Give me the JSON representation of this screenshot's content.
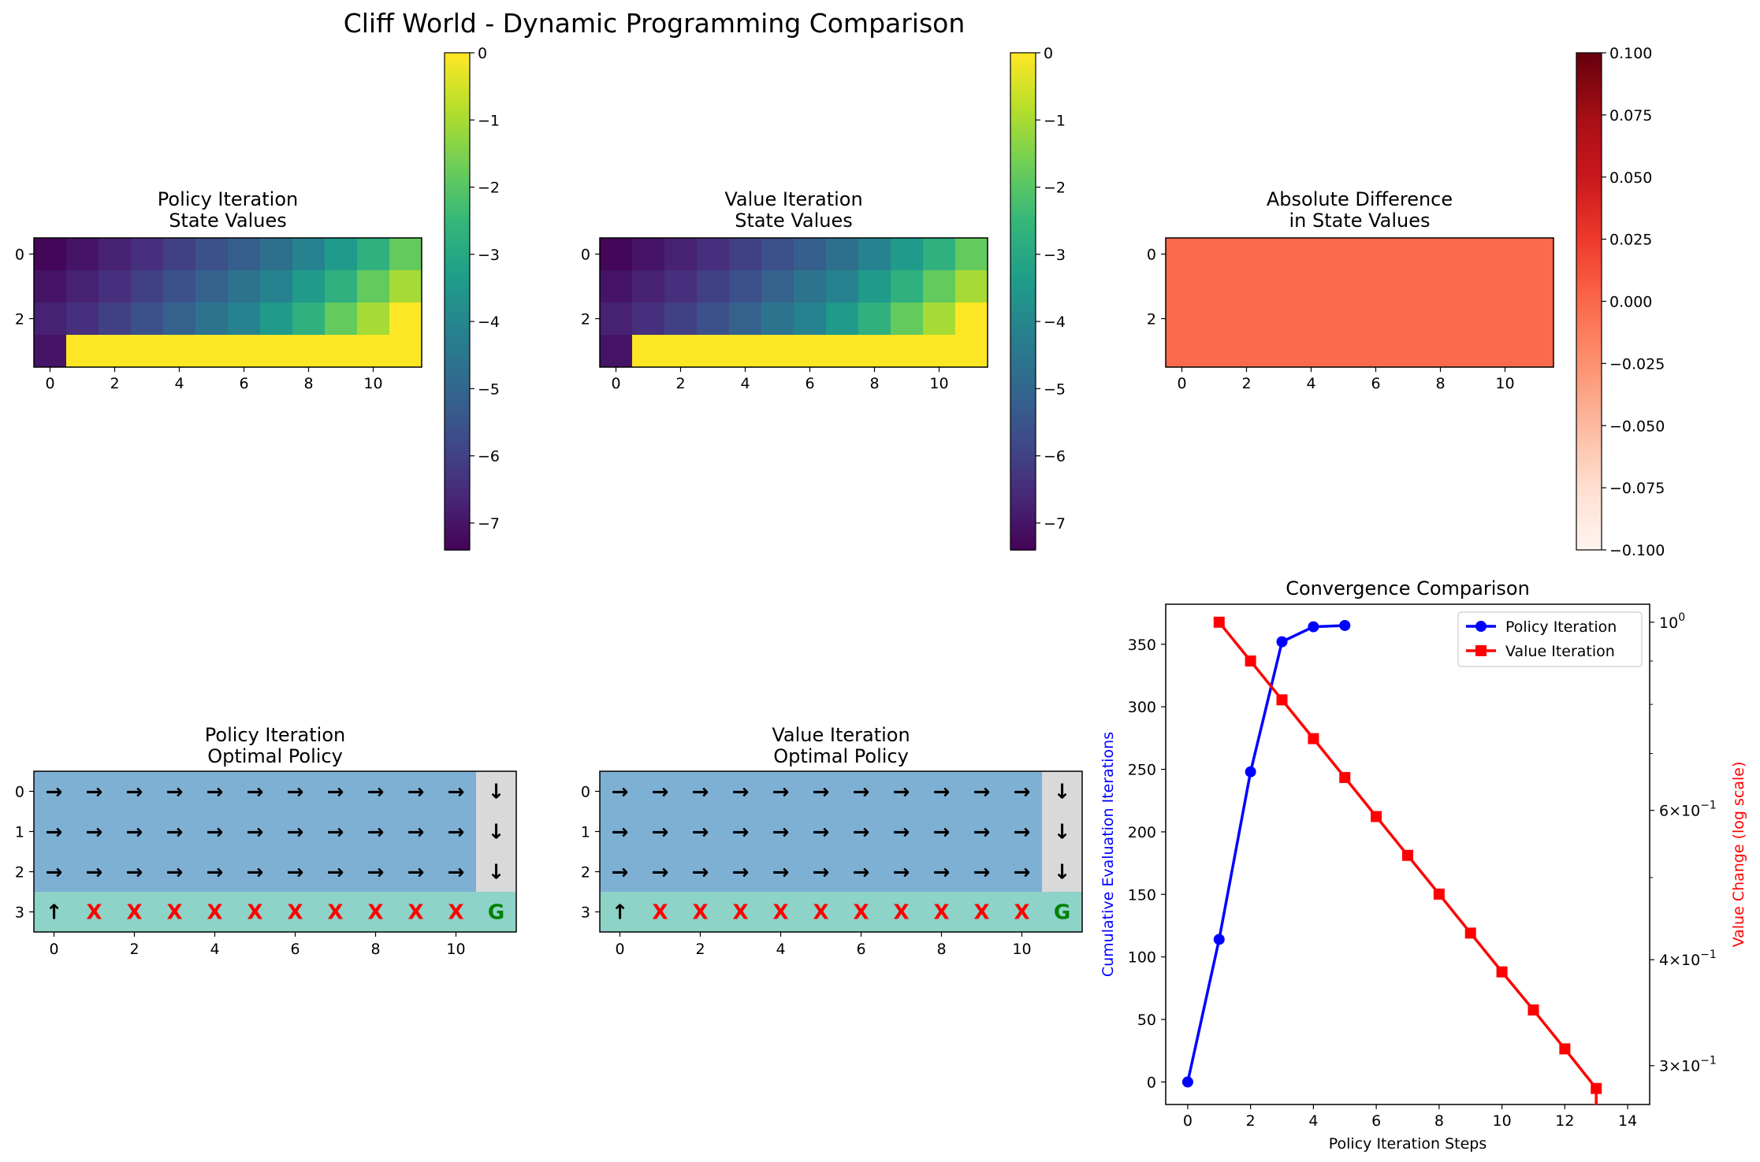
{
  "suptitle": "Cliff World - Dynamic Programming Comparison",
  "chart_data": [
    {
      "type": "heatmap",
      "title": "Policy Iteration\nState Values",
      "xticks": [
        "0",
        "2",
        "4",
        "6",
        "8",
        "10"
      ],
      "yticks": [
        "0",
        "2"
      ],
      "colormap": "viridis",
      "colorbar": {
        "min": -7.4,
        "max": 0,
        "ticks": [
          "0",
          "−1",
          "−2",
          "−3",
          "−4",
          "−5",
          "−6",
          "−7"
        ]
      },
      "values": [
        [
          -7.3,
          -7.0,
          -6.7,
          -6.4,
          -6.0,
          -5.6,
          -5.2,
          -4.7,
          -4.1,
          -3.4,
          -2.7,
          -1.8
        ],
        [
          -7.0,
          -6.7,
          -6.4,
          -6.0,
          -5.6,
          -5.1,
          -4.6,
          -4.1,
          -3.4,
          -2.7,
          -1.8,
          -1.0
        ],
        [
          -6.7,
          -6.4,
          -6.0,
          -5.6,
          -5.1,
          -4.6,
          -4.1,
          -3.4,
          -2.7,
          -1.8,
          -1.0,
          0
        ],
        [
          -7.0,
          0,
          0,
          0,
          0,
          0,
          0,
          0,
          0,
          0,
          0,
          0
        ]
      ]
    },
    {
      "type": "heatmap",
      "title": "Value Iteration\nState Values",
      "xticks": [
        "0",
        "2",
        "4",
        "6",
        "8",
        "10"
      ],
      "yticks": [
        "0",
        "2"
      ],
      "colormap": "viridis",
      "colorbar": {
        "min": -7.4,
        "max": 0,
        "ticks": [
          "0",
          "−1",
          "−2",
          "−3",
          "−4",
          "−5",
          "−6",
          "−7"
        ]
      },
      "values": [
        [
          -7.3,
          -7.0,
          -6.7,
          -6.4,
          -6.0,
          -5.6,
          -5.2,
          -4.7,
          -4.1,
          -3.4,
          -2.7,
          -1.8
        ],
        [
          -7.0,
          -6.7,
          -6.4,
          -6.0,
          -5.6,
          -5.1,
          -4.6,
          -4.1,
          -3.4,
          -2.7,
          -1.8,
          -1.0
        ],
        [
          -6.7,
          -6.4,
          -6.0,
          -5.6,
          -5.1,
          -4.6,
          -4.1,
          -3.4,
          -2.7,
          -1.8,
          -1.0,
          0
        ],
        [
          -7.0,
          0,
          0,
          0,
          0,
          0,
          0,
          0,
          0,
          0,
          0,
          0
        ]
      ]
    },
    {
      "type": "heatmap",
      "title": "Absolute Difference\nin State Values",
      "xticks": [
        "0",
        "2",
        "4",
        "6",
        "8",
        "10"
      ],
      "yticks": [
        "0",
        "2"
      ],
      "colormap": "Reds",
      "uniform_color": "#fb6a4a",
      "value": 0,
      "colorbar": {
        "min": -0.1,
        "max": 0.1,
        "ticks": [
          "0.100",
          "0.075",
          "0.050",
          "0.025",
          "0.000",
          "−0.025",
          "−0.050",
          "−0.075",
          "−0.100"
        ]
      }
    },
    {
      "type": "table",
      "title": "Policy Iteration\nOptimal Policy",
      "xticks": [
        "0",
        "2",
        "4",
        "6",
        "8",
        "10"
      ],
      "yticks": [
        "0",
        "1",
        "2",
        "3"
      ],
      "colors": {
        "normal": "#7eb0d4",
        "terminal_col": "#d9d9d9",
        "cliff_row": "#8dd3c7"
      },
      "grid": [
        [
          "→",
          "→",
          "→",
          "→",
          "→",
          "→",
          "→",
          "→",
          "→",
          "→",
          "→",
          "↓"
        ],
        [
          "→",
          "→",
          "→",
          "→",
          "→",
          "→",
          "→",
          "→",
          "→",
          "→",
          "→",
          "↓"
        ],
        [
          "→",
          "→",
          "→",
          "→",
          "→",
          "→",
          "→",
          "→",
          "→",
          "→",
          "→",
          "↓"
        ],
        [
          "↑",
          "X",
          "X",
          "X",
          "X",
          "X",
          "X",
          "X",
          "X",
          "X",
          "X",
          "G"
        ]
      ]
    },
    {
      "type": "table",
      "title": "Value Iteration\nOptimal Policy",
      "xticks": [
        "0",
        "2",
        "4",
        "6",
        "8",
        "10"
      ],
      "yticks": [
        "0",
        "1",
        "2",
        "3"
      ],
      "colors": {
        "normal": "#7eb0d4",
        "terminal_col": "#d9d9d9",
        "cliff_row": "#8dd3c7"
      },
      "grid": [
        [
          "→",
          "→",
          "→",
          "→",
          "→",
          "→",
          "→",
          "→",
          "→",
          "→",
          "→",
          "↓"
        ],
        [
          "→",
          "→",
          "→",
          "→",
          "→",
          "→",
          "→",
          "→",
          "→",
          "→",
          "→",
          "↓"
        ],
        [
          "→",
          "→",
          "→",
          "→",
          "→",
          "→",
          "→",
          "→",
          "→",
          "→",
          "→",
          "↓"
        ],
        [
          "↑",
          "X",
          "X",
          "X",
          "X",
          "X",
          "X",
          "X",
          "X",
          "X",
          "X",
          "G"
        ]
      ]
    },
    {
      "type": "line",
      "title": "Convergence Comparison",
      "xlabel": "Policy Iteration Steps",
      "ylabel": "Cumulative Evaluation Iterations",
      "ylabel_right": "Value Change (log scale)",
      "xlim": [
        -0.7,
        14.7
      ],
      "xticks": [
        "0",
        "2",
        "4",
        "6",
        "8",
        "10",
        "12",
        "14"
      ],
      "ylim": [
        -18,
        382
      ],
      "yticks": [
        "0",
        "50",
        "100",
        "150",
        "200",
        "250",
        "300",
        "350"
      ],
      "ylim_right_log": [
        0.27,
        1.05
      ],
      "yticks_right": [
        {
          "v": 1.0,
          "base": "10",
          "exp": "0",
          "prefix": ""
        },
        {
          "v": 0.6,
          "base": "10",
          "exp": "−1",
          "prefix": "6×"
        },
        {
          "v": 0.4,
          "base": "10",
          "exp": "−1",
          "prefix": "4×"
        },
        {
          "v": 0.3,
          "base": "10",
          "exp": "−1",
          "prefix": "3×"
        }
      ],
      "legend_position": "upper right",
      "series": [
        {
          "name": "Policy Iteration",
          "color": "#0000ff",
          "marker": "circle",
          "axis": "left",
          "x": [
            0,
            1,
            2,
            3,
            4,
            5
          ],
          "y": [
            0,
            114,
            248,
            352,
            364,
            365
          ]
        },
        {
          "name": "Value Iteration",
          "color": "#ff0000",
          "marker": "square",
          "axis": "right",
          "x": [
            1,
            2,
            3,
            4,
            5,
            6,
            7,
            8,
            9,
            10,
            11,
            12,
            13,
            13
          ],
          "y": [
            1.0,
            0.9,
            0.81,
            0.729,
            0.656,
            0.59,
            0.531,
            0.478,
            0.43,
            0.387,
            0.349,
            0.314,
            0.282,
            0.25
          ]
        }
      ]
    }
  ]
}
